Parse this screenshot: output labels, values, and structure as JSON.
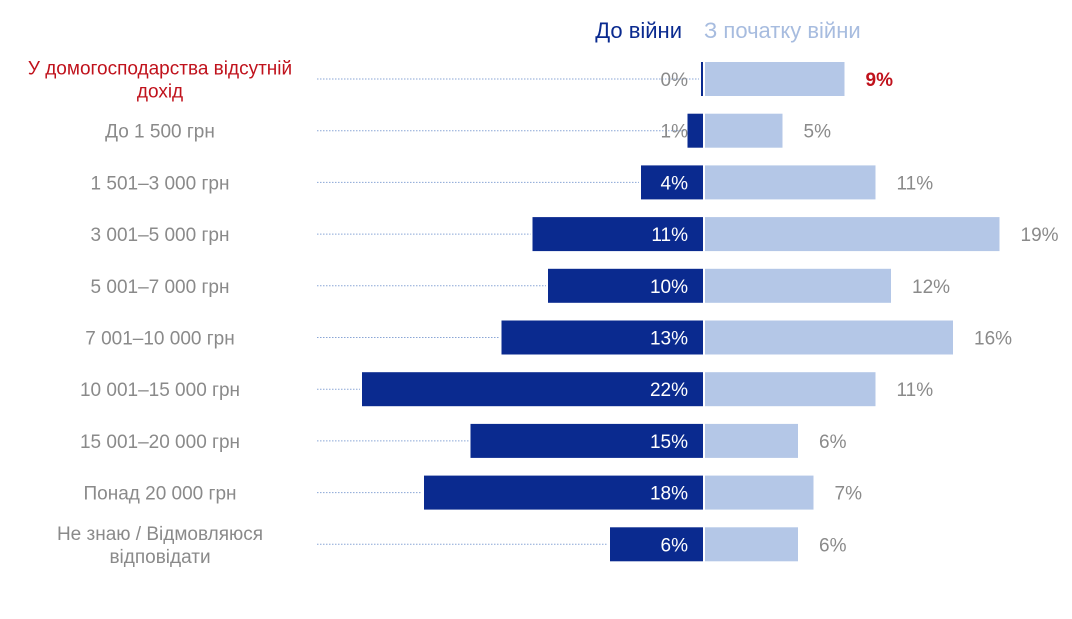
{
  "legend": {
    "before": "До війни",
    "after": "З початку війни"
  },
  "colors": {
    "before": "#0a2a8f",
    "after": "#b4c7e7",
    "label": "#8a8a8a",
    "highlight": "#c0121c",
    "leader": "#8aa6d6"
  },
  "chart_data": {
    "type": "bar",
    "orientation": "horizontal-diverging",
    "categories": [
      "У домогосподарства відсутній дохід",
      "До 1 500 грн",
      "1 501–3 000 грн",
      "3 001–5 000 грн",
      "5 001–7 000 грн",
      "7 001–10 000 грн",
      "10 001–15 000 грн",
      "15 001–20 000 грн",
      "Понад 20 000 грн",
      "Не знаю / Відмовляюся відповідати"
    ],
    "category_lines": [
      [
        "У домогосподарства відсутній",
        "дохід"
      ],
      [
        "До 1 500 грн"
      ],
      [
        "1 501–3 000 грн"
      ],
      [
        "3 001–5 000 грн"
      ],
      [
        "5 001–7 000 грн"
      ],
      [
        "7 001–10 000 грн"
      ],
      [
        "10 001–15 000 грн"
      ],
      [
        "15 001–20 000 грн"
      ],
      [
        "Понад 20 000 грн"
      ],
      [
        "Не знаю / Відмовляюся",
        "відповідати"
      ]
    ],
    "highlighted_categories": [
      0
    ],
    "series": [
      {
        "name": "До війни",
        "values": [
          0,
          1,
          4,
          11,
          10,
          13,
          22,
          15,
          18,
          6
        ],
        "labels": [
          "0%",
          "1%",
          "4%",
          "11%",
          "10%",
          "13%",
          "22%",
          "15%",
          "18%",
          "6%"
        ],
        "color": "#0a2a8f",
        "direction": "left"
      },
      {
        "name": "З початку війни",
        "values": [
          9,
          5,
          11,
          19,
          12,
          16,
          11,
          6,
          7,
          6
        ],
        "labels": [
          "9%",
          "5%",
          "11%",
          "19%",
          "12%",
          "16%",
          "11%",
          "6%",
          "7%",
          "6%"
        ],
        "color": "#b4c7e7",
        "direction": "right"
      }
    ],
    "xlim": [
      0,
      22
    ],
    "unit": "%"
  }
}
